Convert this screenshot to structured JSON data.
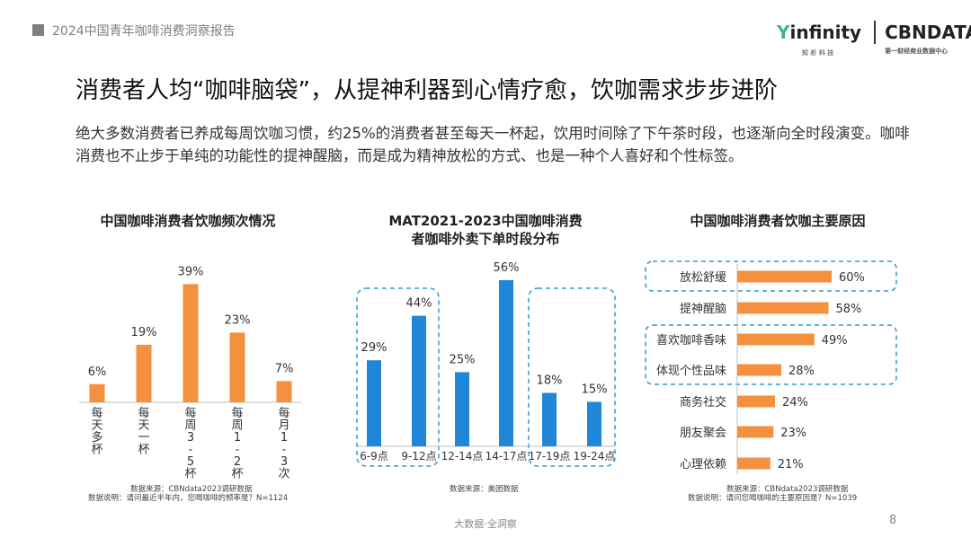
{
  "header": {
    "title": "2024中国青年咖啡消费洞察报告"
  },
  "logo": {
    "infinity_y": "Y",
    "infinity_rest": "infinity",
    "infinity_sub": "知 析 科 技",
    "cbn": "CBNDATA",
    "cbn_sub": "第一财经商业数据中心"
  },
  "main_title": "消费者人均“咖啡脑袋”，从提神利器到心情疗愈，饮咖需求步步进阶",
  "description": "绝大多数消费者已养成每周饮咖习惯，约25%的消费者甚至每天一杯起，饮用时间除了下午茶时段，也逐渐向全时段演变。咖啡消费也不止步于单纯的功能性的提神醒脑，而是成为精神放松的方式、也是一种个人喜好和个性标签。",
  "notes": {
    "left_line1": "数据来源：CBNdata2023调研数据",
    "left_line2": "数据说明：请问最近半年内，您喝咖啡的频率是？N=1124",
    "middle_line1": "数据来源：美团数据",
    "right_line1": "数据来源：CBNdata2023调研数据",
    "right_line2": "数据说明：请问您喝咖啡的主要原因是？N=1039"
  },
  "footer": {
    "text": "大数据·全洞察",
    "page": "8"
  },
  "colors": {
    "orange": "#F4913F",
    "blue": "#1F86D8",
    "dashed": "#2E9BD8",
    "grey": "#7f7f7f"
  },
  "chart_data": [
    {
      "type": "bar",
      "title": "中国咖啡消费者饮咖频次情况",
      "categories": [
        "每天多杯",
        "每天一杯",
        "每周3-5杯",
        "每周1-2杯",
        "每月1-3次"
      ],
      "values": [
        6,
        19,
        39,
        23,
        7
      ],
      "value_labels": [
        "6%",
        "19%",
        "39%",
        "23%",
        "7%"
      ],
      "unit": "%",
      "ylim": [
        0,
        40
      ],
      "color": "#F4913F",
      "grid": false
    },
    {
      "type": "bar",
      "title_line1": "MAT2021-2023中国咖啡消费",
      "title_line2": "者咖啡外卖下单时段分布",
      "categories": [
        "6-9点",
        "9-12点",
        "12-14点",
        "14-17点",
        "17-19点",
        "19-24点"
      ],
      "values": [
        29,
        44,
        25,
        56,
        18,
        15
      ],
      "value_labels": [
        "29%",
        "44%",
        "25%",
        "56%",
        "18%",
        "15%"
      ],
      "unit": "%",
      "ylim": [
        0,
        56
      ],
      "color": "#1F86D8",
      "highlight_groups": [
        [
          "6-9点",
          "9-12点"
        ],
        [
          "17-19点",
          "19-24点"
        ]
      ],
      "grid": false
    },
    {
      "type": "bar",
      "orientation": "horizontal",
      "title": "中国咖啡消费者饮咖主要原因",
      "categories": [
        "放松舒缓",
        "提神醒脑",
        "喜欢咖啡香味",
        "体现个性品味",
        "商务社交",
        "朋友聚会",
        "心理依赖"
      ],
      "values": [
        60,
        58,
        49,
        28,
        24,
        23,
        21
      ],
      "value_labels": [
        "60%",
        "58%",
        "49%",
        "28%",
        "24%",
        "23%",
        "21%"
      ],
      "unit": "%",
      "xlim": [
        0,
        60
      ],
      "color": "#F4913F",
      "highlight_groups": [
        [
          "放松舒缓"
        ],
        [
          "喜欢咖啡香味",
          "体现个性品味"
        ]
      ],
      "grid": false
    }
  ]
}
